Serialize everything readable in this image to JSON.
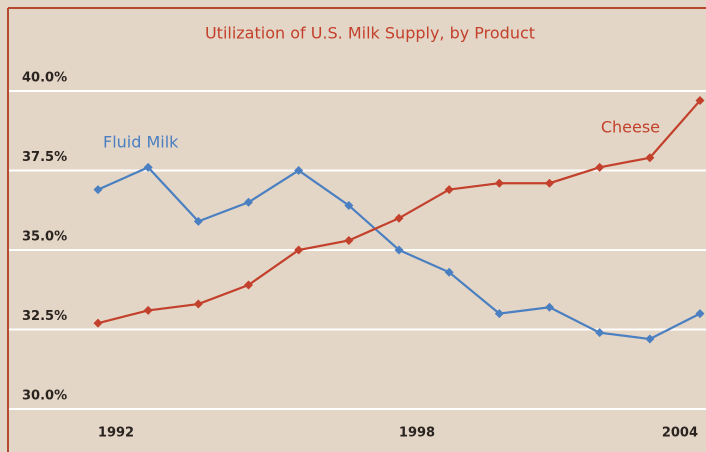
{
  "chart_data": {
    "type": "line",
    "title": "Utilization of U.S. Milk Supply, by Product",
    "x": [
      1992,
      1993,
      1994,
      1995,
      1996,
      1997,
      1998,
      1999,
      2000,
      2001,
      2002,
      2003,
      2004
    ],
    "xlim": [
      1992,
      2004
    ],
    "xticks": [
      1992,
      1998,
      2004
    ],
    "ylim": [
      30,
      40
    ],
    "yticks": [
      {
        "value": 30,
        "label": "30.0%"
      },
      {
        "value": 32.5,
        "label": "32.5%"
      },
      {
        "value": 35,
        "label": "35.0%"
      },
      {
        "value": 37.5,
        "label": "37.5%"
      },
      {
        "value": 40,
        "label": "40.0%"
      }
    ],
    "grid": true,
    "series": [
      {
        "name": "Fluid Milk",
        "color": "#4a7fc1",
        "values": [
          36.9,
          37.6,
          35.9,
          36.5,
          37.5,
          36.4,
          35.0,
          34.3,
          33.0,
          33.2,
          32.4,
          32.2,
          33.0
        ]
      },
      {
        "name": "Cheese",
        "color": "#c2402c",
        "values": [
          32.7,
          33.1,
          33.3,
          33.9,
          35.0,
          35.3,
          36.0,
          36.9,
          37.1,
          37.1,
          37.6,
          37.9,
          39.7
        ]
      }
    ]
  }
}
